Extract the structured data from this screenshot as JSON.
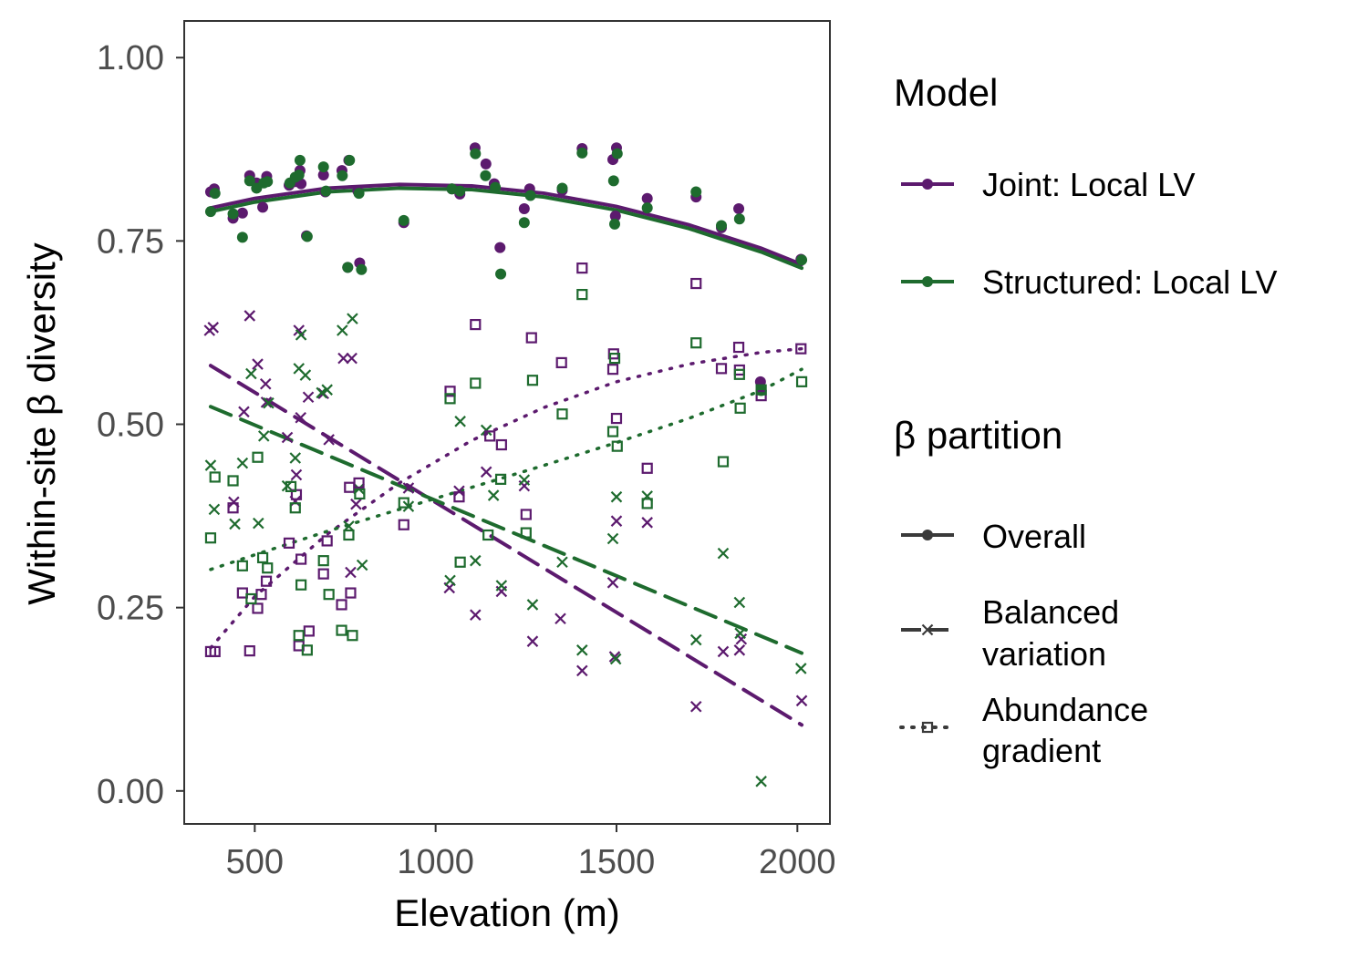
{
  "chart_data": {
    "type": "scatter",
    "xlabel": "Elevation (m)",
    "ylabel": "Within-site β diversity",
    "xlim": [
      305,
      2090
    ],
    "ylim": [
      -0.045,
      1.05
    ],
    "x_ticks": [
      500,
      1000,
      1500,
      2000
    ],
    "x_tick_labels": [
      "500",
      "1000",
      "1500",
      "2000"
    ],
    "y_ticks": [
      0,
      0.25,
      0.5,
      0.75,
      1.0
    ],
    "y_tick_labels": [
      "0.00",
      "0.25",
      "0.50",
      "0.75",
      "1.00"
    ],
    "grid": false,
    "colors": {
      "joint": "#5c1a6e",
      "structured": "#1e6b2e",
      "legend_neutral": "#3a3a3a"
    },
    "legend": {
      "placement": "right",
      "model_title": "Model",
      "models": [
        {
          "key": "joint",
          "label": "Joint: Local LV"
        },
        {
          "key": "structured",
          "label": "Structured: Local LV"
        }
      ],
      "partition_title": "β partition",
      "partitions": [
        {
          "key": "overall",
          "label_lines": [
            "Overall"
          ],
          "marker": "circle",
          "linetype": "solid"
        },
        {
          "key": "balanced",
          "label_lines": [
            "Balanced",
            "variation"
          ],
          "marker": "cross",
          "linetype": "dashed"
        },
        {
          "key": "abundance",
          "label_lines": [
            "Abundance",
            "gradient"
          ],
          "marker": "square",
          "linetype": "dotted"
        }
      ]
    },
    "series": [
      {
        "name": "Joint: Local LV",
        "model": "joint",
        "partition": "Overall",
        "marker": "circle",
        "points": [
          [
            378,
            0.817
          ],
          [
            388,
            0.821
          ],
          [
            440,
            0.781
          ],
          [
            466,
            0.788
          ],
          [
            486,
            0.839
          ],
          [
            505,
            0.829
          ],
          [
            522,
            0.796
          ],
          [
            533,
            0.838
          ],
          [
            595,
            0.826
          ],
          [
            612,
            0.831
          ],
          [
            625,
            0.846
          ],
          [
            628,
            0.828
          ],
          [
            643,
            0.757
          ],
          [
            690,
            0.84
          ],
          [
            695,
            0.817
          ],
          [
            741,
            0.846
          ],
          [
            757,
            0.714
          ],
          [
            760,
            0.86
          ],
          [
            785,
            0.818
          ],
          [
            790,
            0.72
          ],
          [
            912,
            0.775
          ],
          [
            1045,
            0.821
          ],
          [
            1067,
            0.814
          ],
          [
            1109,
            0.877
          ],
          [
            1139,
            0.855
          ],
          [
            1162,
            0.828
          ],
          [
            1178,
            0.741
          ],
          [
            1245,
            0.794
          ],
          [
            1260,
            0.821
          ],
          [
            1350,
            0.819
          ],
          [
            1405,
            0.876
          ],
          [
            1490,
            0.861
          ],
          [
            1497,
            0.784
          ],
          [
            1500,
            0.877
          ],
          [
            1585,
            0.808
          ],
          [
            1720,
            0.81
          ],
          [
            1790,
            0.768
          ],
          [
            1838,
            0.794
          ],
          [
            1898,
            0.558
          ],
          [
            2010,
            0.725
          ]
        ]
      },
      {
        "name": "Structured: Local LV",
        "model": "structured",
        "partition": "Overall",
        "marker": "circle",
        "points": [
          [
            378,
            0.79
          ],
          [
            390,
            0.815
          ],
          [
            440,
            0.787
          ],
          [
            466,
            0.755
          ],
          [
            486,
            0.832
          ],
          [
            505,
            0.822
          ],
          [
            525,
            0.829
          ],
          [
            535,
            0.831
          ],
          [
            597,
            0.829
          ],
          [
            612,
            0.837
          ],
          [
            622,
            0.84
          ],
          [
            625,
            0.86
          ],
          [
            645,
            0.756
          ],
          [
            690,
            0.851
          ],
          [
            697,
            0.818
          ],
          [
            742,
            0.839
          ],
          [
            757,
            0.714
          ],
          [
            762,
            0.86
          ],
          [
            788,
            0.815
          ],
          [
            795,
            0.711
          ],
          [
            912,
            0.778
          ],
          [
            1045,
            0.821
          ],
          [
            1067,
            0.818
          ],
          [
            1110,
            0.869
          ],
          [
            1138,
            0.839
          ],
          [
            1165,
            0.823
          ],
          [
            1180,
            0.705
          ],
          [
            1245,
            0.775
          ],
          [
            1262,
            0.812
          ],
          [
            1350,
            0.822
          ],
          [
            1405,
            0.87
          ],
          [
            1492,
            0.832
          ],
          [
            1495,
            0.773
          ],
          [
            1502,
            0.869
          ],
          [
            1585,
            0.795
          ],
          [
            1720,
            0.817
          ],
          [
            1790,
            0.771
          ],
          [
            1840,
            0.78
          ],
          [
            1900,
            0.546
          ],
          [
            2012,
            0.724
          ]
        ]
      },
      {
        "name": "Joint: Local LV",
        "model": "joint",
        "partition": "Balanced variation",
        "marker": "cross",
        "points": [
          [
            375,
            0.628
          ],
          [
            385,
            0.632
          ],
          [
            442,
            0.394
          ],
          [
            470,
            0.517
          ],
          [
            486,
            0.648
          ],
          [
            508,
            0.582
          ],
          [
            530,
            0.555
          ],
          [
            532,
            0.53
          ],
          [
            590,
            0.482
          ],
          [
            612,
            0.395
          ],
          [
            615,
            0.431
          ],
          [
            622,
            0.628
          ],
          [
            627,
            0.509
          ],
          [
            648,
            0.537
          ],
          [
            690,
            0.542
          ],
          [
            705,
            0.479
          ],
          [
            745,
            0.59
          ],
          [
            765,
            0.298
          ],
          [
            768,
            0.59
          ],
          [
            780,
            0.391
          ],
          [
            925,
            0.413
          ],
          [
            1038,
            0.277
          ],
          [
            1065,
            0.409
          ],
          [
            1110,
            0.24
          ],
          [
            1140,
            0.435
          ],
          [
            1182,
            0.272
          ],
          [
            1245,
            0.416
          ],
          [
            1268,
            0.204
          ],
          [
            1345,
            0.235
          ],
          [
            1405,
            0.164
          ],
          [
            1490,
            0.284
          ],
          [
            1495,
            0.183
          ],
          [
            1500,
            0.368
          ],
          [
            1585,
            0.366
          ],
          [
            1720,
            0.115
          ],
          [
            1795,
            0.19
          ],
          [
            1840,
            0.192
          ],
          [
            1845,
            0.207
          ],
          [
            2012,
            0.123
          ]
        ]
      },
      {
        "name": "Structured: Local LV",
        "model": "structured",
        "partition": "Balanced variation",
        "marker": "cross",
        "points": [
          [
            378,
            0.444
          ],
          [
            388,
            0.384
          ],
          [
            445,
            0.364
          ],
          [
            466,
            0.447
          ],
          [
            490,
            0.569
          ],
          [
            510,
            0.365
          ],
          [
            525,
            0.484
          ],
          [
            538,
            0.529
          ],
          [
            590,
            0.416
          ],
          [
            612,
            0.454
          ],
          [
            622,
            0.576
          ],
          [
            628,
            0.622
          ],
          [
            640,
            0.567
          ],
          [
            685,
            0.543
          ],
          [
            700,
            0.547
          ],
          [
            742,
            0.628
          ],
          [
            760,
            0.361
          ],
          [
            770,
            0.644
          ],
          [
            788,
            0.412
          ],
          [
            797,
            0.308
          ],
          [
            925,
            0.388
          ],
          [
            1040,
            0.287
          ],
          [
            1068,
            0.504
          ],
          [
            1110,
            0.314
          ],
          [
            1140,
            0.492
          ],
          [
            1160,
            0.403
          ],
          [
            1182,
            0.28
          ],
          [
            1245,
            0.424
          ],
          [
            1268,
            0.254
          ],
          [
            1350,
            0.312
          ],
          [
            1405,
            0.192
          ],
          [
            1490,
            0.344
          ],
          [
            1498,
            0.18
          ],
          [
            1500,
            0.401
          ],
          [
            1585,
            0.402
          ],
          [
            1720,
            0.206
          ],
          [
            1795,
            0.324
          ],
          [
            1840,
            0.257
          ],
          [
            1842,
            0.215
          ],
          [
            1900,
            0.013
          ],
          [
            2010,
            0.167
          ]
        ]
      },
      {
        "name": "Joint: Local LV",
        "model": "joint",
        "partition": "Abundance gradient",
        "marker": "square",
        "points": [
          [
            378,
            0.19
          ],
          [
            390,
            0.19
          ],
          [
            440,
            0.386
          ],
          [
            466,
            0.27
          ],
          [
            486,
            0.191
          ],
          [
            508,
            0.249
          ],
          [
            518,
            0.268
          ],
          [
            532,
            0.286
          ],
          [
            595,
            0.338
          ],
          [
            615,
            0.404
          ],
          [
            622,
            0.198
          ],
          [
            628,
            0.316
          ],
          [
            650,
            0.218
          ],
          [
            690,
            0.296
          ],
          [
            700,
            0.341
          ],
          [
            740,
            0.254
          ],
          [
            762,
            0.414
          ],
          [
            765,
            0.27
          ],
          [
            788,
            0.42
          ],
          [
            912,
            0.363
          ],
          [
            1040,
            0.545
          ],
          [
            1065,
            0.401
          ],
          [
            1110,
            0.636
          ],
          [
            1150,
            0.484
          ],
          [
            1182,
            0.472
          ],
          [
            1250,
            0.377
          ],
          [
            1265,
            0.618
          ],
          [
            1348,
            0.584
          ],
          [
            1405,
            0.713
          ],
          [
            1490,
            0.575
          ],
          [
            1492,
            0.596
          ],
          [
            1500,
            0.508
          ],
          [
            1585,
            0.44
          ],
          [
            1720,
            0.692
          ],
          [
            1790,
            0.576
          ],
          [
            1838,
            0.605
          ],
          [
            1840,
            0.574
          ],
          [
            1900,
            0.539
          ],
          [
            2010,
            0.603
          ]
        ]
      },
      {
        "name": "Structured: Local LV",
        "model": "structured",
        "partition": "Abundance gradient",
        "marker": "square",
        "points": [
          [
            378,
            0.345
          ],
          [
            390,
            0.428
          ],
          [
            440,
            0.423
          ],
          [
            466,
            0.307
          ],
          [
            490,
            0.262
          ],
          [
            508,
            0.455
          ],
          [
            522,
            0.318
          ],
          [
            535,
            0.304
          ],
          [
            600,
            0.415
          ],
          [
            612,
            0.386
          ],
          [
            622,
            0.212
          ],
          [
            628,
            0.281
          ],
          [
            645,
            0.192
          ],
          [
            690,
            0.314
          ],
          [
            705,
            0.268
          ],
          [
            740,
            0.219
          ],
          [
            760,
            0.349
          ],
          [
            770,
            0.212
          ],
          [
            790,
            0.405
          ],
          [
            912,
            0.393
          ],
          [
            1040,
            0.535
          ],
          [
            1068,
            0.312
          ],
          [
            1110,
            0.556
          ],
          [
            1145,
            0.349
          ],
          [
            1180,
            0.425
          ],
          [
            1250,
            0.352
          ],
          [
            1268,
            0.56
          ],
          [
            1350,
            0.514
          ],
          [
            1405,
            0.677
          ],
          [
            1490,
            0.49
          ],
          [
            1495,
            0.59
          ],
          [
            1502,
            0.47
          ],
          [
            1585,
            0.392
          ],
          [
            1720,
            0.611
          ],
          [
            1795,
            0.449
          ],
          [
            1840,
            0.568
          ],
          [
            1842,
            0.522
          ],
          [
            1900,
            0.547
          ],
          [
            2012,
            0.558
          ]
        ]
      },
      {
        "name": "Joint: Local LV",
        "model": "joint",
        "partition": "Overall",
        "kind": "fit",
        "x": [
          378,
          500,
          700,
          900,
          1100,
          1300,
          1500,
          1700,
          1900,
          2012
        ],
        "y": [
          0.795,
          0.808,
          0.822,
          0.827,
          0.825,
          0.815,
          0.797,
          0.772,
          0.74,
          0.718
        ]
      },
      {
        "name": "Structured: Local LV",
        "model": "structured",
        "partition": "Overall",
        "kind": "fit",
        "x": [
          378,
          500,
          700,
          900,
          1100,
          1300,
          1500,
          1700,
          1900,
          2012
        ],
        "y": [
          0.79,
          0.803,
          0.817,
          0.822,
          0.82,
          0.81,
          0.792,
          0.767,
          0.735,
          0.713
        ]
      },
      {
        "name": "Joint: Local LV",
        "model": "joint",
        "partition": "Balanced variation",
        "kind": "fit",
        "x": [
          378,
          2012
        ],
        "y": [
          0.58,
          0.09
        ]
      },
      {
        "name": "Structured: Local LV",
        "model": "structured",
        "partition": "Balanced variation",
        "kind": "fit",
        "x": [
          378,
          2012
        ],
        "y": [
          0.524,
          0.188
        ]
      },
      {
        "name": "Joint: Local LV",
        "model": "joint",
        "partition": "Abundance gradient",
        "kind": "fit",
        "x": [
          378,
          500,
          700,
          900,
          1100,
          1300,
          1500,
          1700,
          1900,
          2012
        ],
        "y": [
          0.195,
          0.265,
          0.35,
          0.42,
          0.478,
          0.523,
          0.558,
          0.582,
          0.598,
          0.603
        ]
      },
      {
        "name": "Structured: Local LV",
        "model": "structured",
        "partition": "Abundance gradient",
        "kind": "fit",
        "x": [
          378,
          500,
          700,
          900,
          1100,
          1300,
          1500,
          1700,
          1900,
          2012
        ],
        "y": [
          0.302,
          0.322,
          0.354,
          0.384,
          0.414,
          0.444,
          0.475,
          0.508,
          0.546,
          0.575
        ]
      }
    ]
  }
}
